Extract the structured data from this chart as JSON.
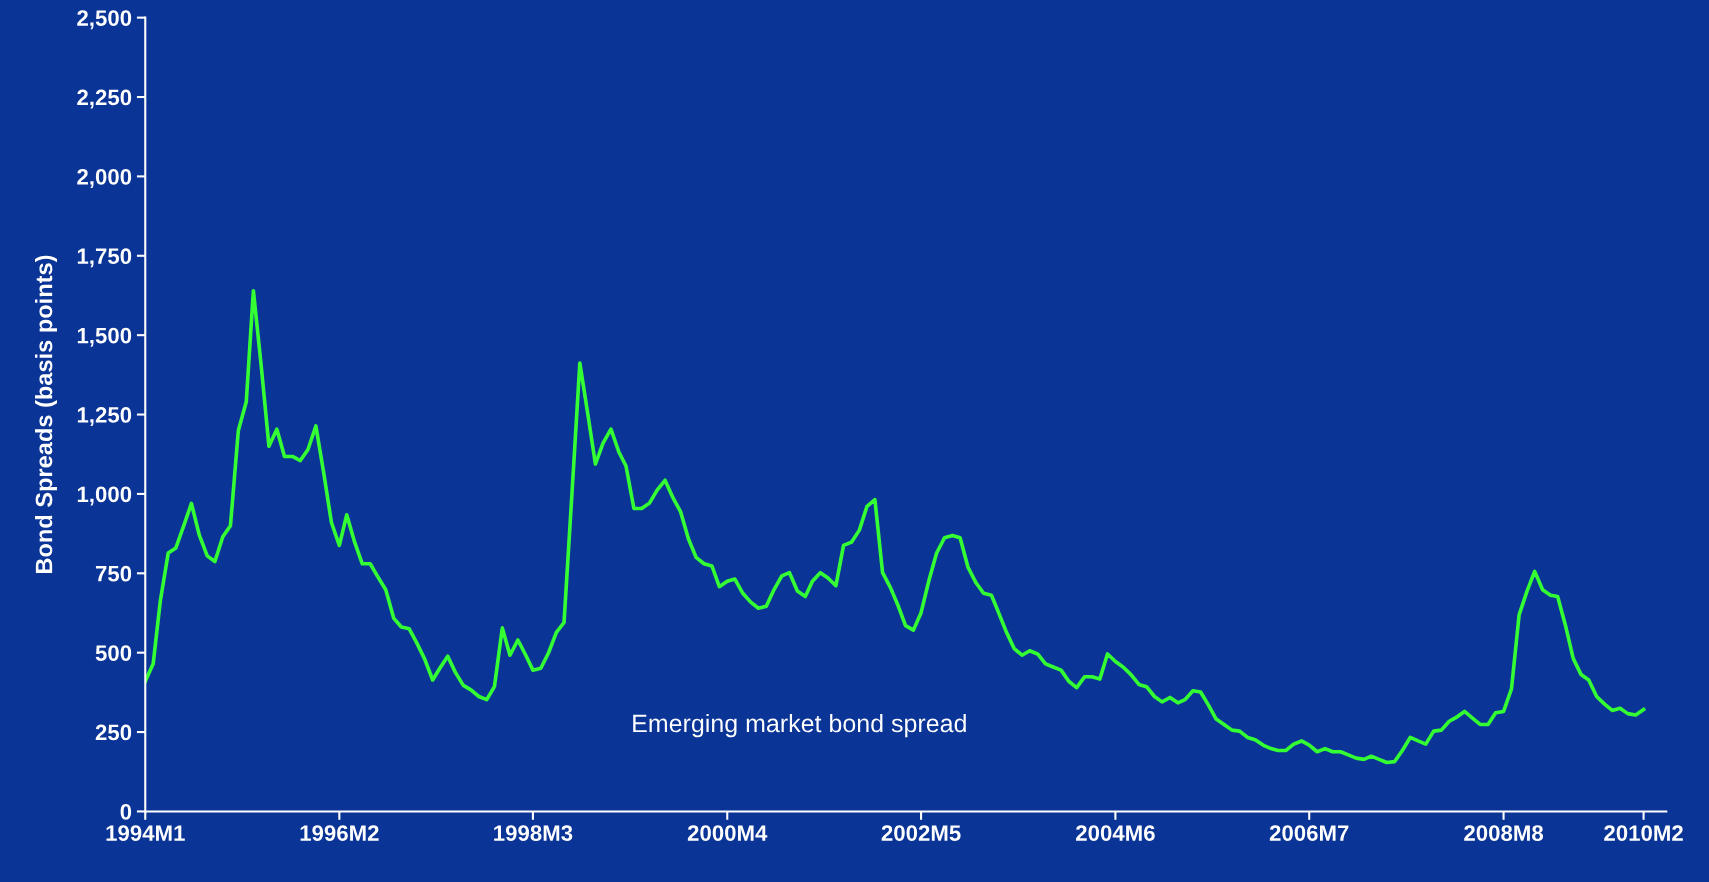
{
  "chart_data": {
    "type": "line",
    "ylabel": "Bond Spreads (basis points)",
    "x": [
      "1994-01",
      "1994-02",
      "1994-03",
      "1994-04",
      "1994-05",
      "1994-06",
      "1994-07",
      "1994-08",
      "1994-09",
      "1994-10",
      "1994-11",
      "1994-12",
      "1995-01",
      "1995-02",
      "1995-03",
      "1995-04",
      "1995-05",
      "1995-06",
      "1995-07",
      "1995-08",
      "1995-09",
      "1995-10",
      "1995-11",
      "1995-12",
      "1996-01",
      "1996-02",
      "1996-03",
      "1996-04",
      "1996-05",
      "1996-06",
      "1996-07",
      "1996-08",
      "1996-09",
      "1996-10",
      "1996-11",
      "1996-12",
      "1997-01",
      "1997-02",
      "1997-03",
      "1997-04",
      "1997-05",
      "1997-06",
      "1997-07",
      "1997-08",
      "1997-09",
      "1997-10",
      "1997-11",
      "1997-12",
      "1998-01",
      "1998-02",
      "1998-03",
      "1998-04",
      "1998-05",
      "1998-06",
      "1998-07",
      "1998-08",
      "1998-09",
      "1998-10",
      "1998-11",
      "1998-12",
      "1999-01",
      "1999-02",
      "1999-03",
      "1999-04",
      "1999-05",
      "1999-06",
      "1999-07",
      "1999-08",
      "1999-09",
      "1999-10",
      "1999-11",
      "1999-12",
      "2000-01",
      "2000-02",
      "2000-03",
      "2000-04",
      "2000-05",
      "2000-06",
      "2000-07",
      "2000-08",
      "2000-09",
      "2000-10",
      "2000-11",
      "2000-12",
      "2001-01",
      "2001-02",
      "2001-03",
      "2001-04",
      "2001-05",
      "2001-06",
      "2001-07",
      "2001-08",
      "2001-09",
      "2001-10",
      "2001-11",
      "2001-12",
      "2002-01",
      "2002-02",
      "2002-03",
      "2002-04",
      "2002-05",
      "2002-06",
      "2002-07",
      "2002-08",
      "2002-09",
      "2002-10",
      "2002-11",
      "2002-12",
      "2003-01",
      "2003-02",
      "2003-03",
      "2003-04",
      "2003-05",
      "2003-06",
      "2003-07",
      "2003-08",
      "2003-09",
      "2003-10",
      "2003-11",
      "2003-12",
      "2004-01",
      "2004-02",
      "2004-03",
      "2004-04",
      "2004-05",
      "2004-06",
      "2004-07",
      "2004-08",
      "2004-09",
      "2004-10",
      "2004-11",
      "2004-12",
      "2005-01",
      "2005-02",
      "2005-03",
      "2005-04",
      "2005-05",
      "2005-06",
      "2005-07",
      "2005-08",
      "2005-09",
      "2005-10",
      "2005-11",
      "2005-12",
      "2006-01",
      "2006-02",
      "2006-03",
      "2006-04",
      "2006-05",
      "2006-06",
      "2006-07",
      "2006-08",
      "2006-09",
      "2006-10",
      "2006-11",
      "2006-12",
      "2007-01",
      "2007-02",
      "2007-03",
      "2007-04",
      "2007-05",
      "2007-06",
      "2007-07",
      "2007-08",
      "2007-09",
      "2007-10",
      "2007-11",
      "2007-12",
      "2008-01",
      "2008-02",
      "2008-03",
      "2008-04",
      "2008-05",
      "2008-06",
      "2008-07",
      "2008-08",
      "2008-09",
      "2008-10",
      "2008-11",
      "2008-12",
      "2009-01",
      "2009-02",
      "2009-03",
      "2009-04",
      "2009-05",
      "2009-06",
      "2009-07",
      "2009-08",
      "2009-09",
      "2009-10",
      "2009-11",
      "2009-12",
      "2010-01",
      "2010-02"
    ],
    "series": [
      {
        "color": "#33ff33",
        "values": [
          410,
          465,
          663,
          814,
          830,
          900,
          970,
          870,
          805,
          787,
          865,
          900,
          1200,
          1290,
          1640,
          1400,
          1150,
          1204,
          1118,
          1118,
          1105,
          1140,
          1214,
          1070,
          910,
          838,
          934,
          848,
          780,
          780,
          739,
          698,
          609,
          581,
          575,
          530,
          479,
          414,
          451,
          489,
          438,
          397,
          383,
          362,
          352,
          393,
          578,
          492,
          540,
          492,
          445,
          451,
          499,
          564,
          595,
          1000,
          1412,
          1258,
          1094,
          1160,
          1204,
          1132,
          1088,
          954,
          954,
          971,
          1012,
          1043,
          988,
          944,
          858,
          800,
          780,
          773,
          708,
          725,
          732,
          687,
          660,
          640,
          646,
          698,
          742,
          752,
          694,
          677,
          725,
          752,
          735,
          711,
          838,
          848,
          886,
          961,
          982,
          752,
          705,
          646,
          585,
          571,
          626,
          728,
          814,
          862,
          869,
          862,
          769,
          722,
          687,
          681,
          626,
          564,
          513,
          492,
          506,
          496,
          465,
          455,
          445,
          410,
          390,
          424,
          424,
          417,
          496,
          472,
          455,
          431,
          400,
          393,
          362,
          345,
          359,
          342,
          352,
          380,
          376,
          335,
          291,
          274,
          256,
          253,
          233,
          226,
          209,
          198,
          192,
          192,
          212,
          222,
          209,
          188,
          198,
          188,
          188,
          178,
          168,
          164,
          174,
          164,
          154,
          157,
          192,
          233,
          222,
          212,
          253,
          256,
          284,
          298,
          315,
          294,
          274,
          274,
          311,
          315,
          386,
          619,
          694,
          756,
          698,
          681,
          677,
          585,
          482,
          431,
          414,
          362,
          338,
          318,
          325,
          308,
          304,
          321
        ]
      }
    ],
    "xlim": [
      "1994-01",
      "2010-05"
    ],
    "xticks": [
      {
        "value": "1994-01",
        "label": "1994M1"
      },
      {
        "value": "1996-02",
        "label": "1996M2"
      },
      {
        "value": "1998-03",
        "label": "1998M3"
      },
      {
        "value": "2000-04",
        "label": "2000M4"
      },
      {
        "value": "2002-05",
        "label": "2002M5"
      },
      {
        "value": "2004-06",
        "label": "2004M6"
      },
      {
        "value": "2006-07",
        "label": "2006M7"
      },
      {
        "value": "2008-08",
        "label": "2008M8"
      },
      {
        "value": "2010-02",
        "label": "2010M2"
      }
    ],
    "ylim": [
      0,
      2500
    ],
    "yticks": [
      {
        "value": 0,
        "label": "0"
      },
      {
        "value": 250,
        "label": "250"
      },
      {
        "value": 500,
        "label": "500"
      },
      {
        "value": 750,
        "label": "750"
      },
      {
        "value": 1000,
        "label": "1,000"
      },
      {
        "value": 1250,
        "label": "1,250"
      },
      {
        "value": 1500,
        "label": "1,500"
      },
      {
        "value": 1750,
        "label": "1,750"
      },
      {
        "value": 2000,
        "label": "2,000"
      },
      {
        "value": 2250,
        "label": "2,250"
      },
      {
        "value": 2500,
        "label": "2,500"
      }
    ],
    "annotations": [
      "Emerging market bond spread"
    ],
    "grid": false,
    "legend": false,
    "marker": "none",
    "line_style": "solid"
  }
}
